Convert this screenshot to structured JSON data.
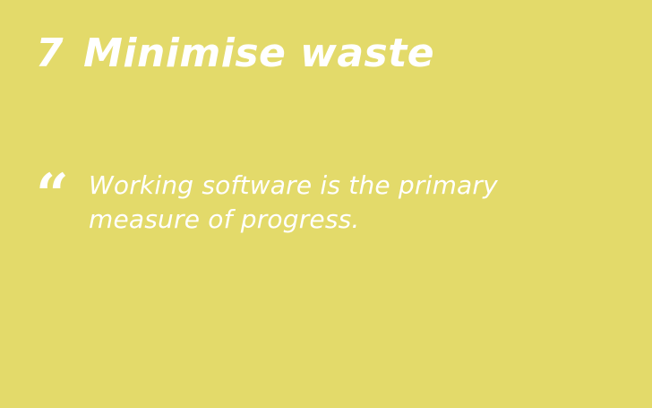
{
  "slide": {
    "number": "7",
    "title": "Minimise waste",
    "quote_mark": "“",
    "quote_lines": [
      "Working software is the primary",
      "measure of progress."
    ]
  },
  "colors": {
    "background": "#E3DA6A",
    "text": "#FFFFFF"
  }
}
